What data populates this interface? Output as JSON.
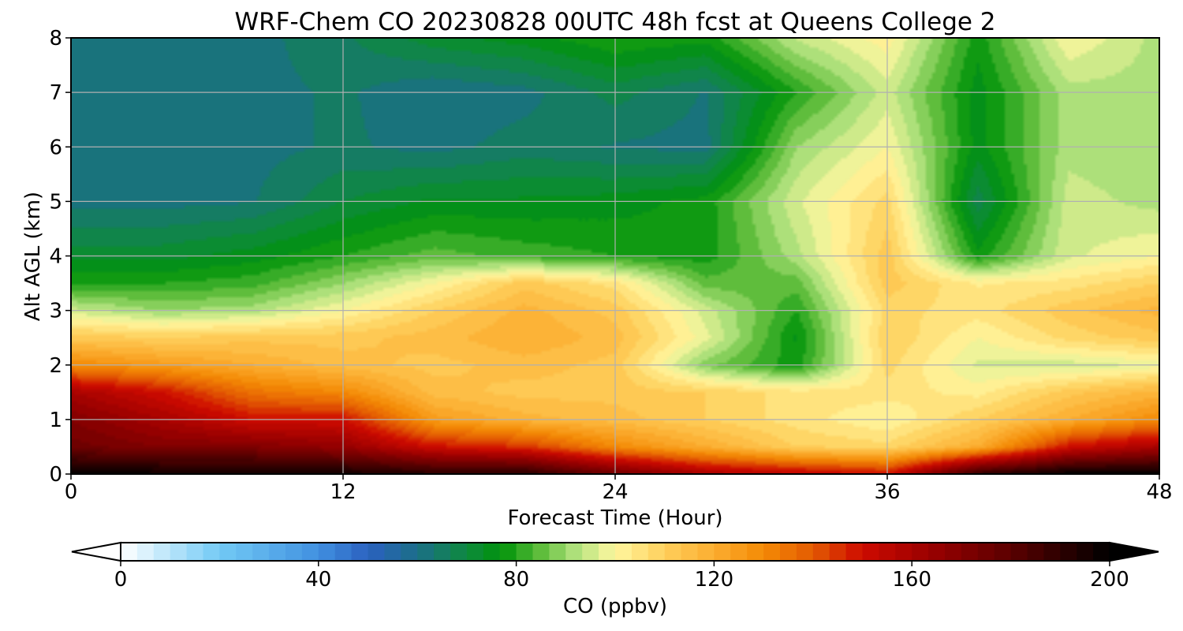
{
  "chart_data": {
    "type": "heatmap",
    "title": "WRF-Chem CO  20230828 00UTC 48h fcst at Queens College 2",
    "xlabel": "Forecast Time (Hour)",
    "ylabel": "Alt AGL (km)",
    "xlim": [
      0,
      48
    ],
    "ylim": [
      0,
      8
    ],
    "xticks": [
      0,
      12,
      24,
      36,
      48
    ],
    "yticks": [
      0,
      1,
      2,
      3,
      4,
      5,
      6,
      7,
      8
    ],
    "grid": true,
    "x": [
      0,
      4,
      8,
      12,
      16,
      20,
      24,
      28,
      32,
      36,
      40,
      44,
      48
    ],
    "y": [
      0,
      0.5,
      1,
      1.5,
      2,
      2.5,
      3,
      3.5,
      4,
      5,
      6,
      7,
      8
    ],
    "z": [
      [
        200,
        198,
        198,
        196,
        192,
        192,
        175,
        160,
        155,
        150,
        190,
        200,
        200
      ],
      [
        175,
        170,
        170,
        165,
        150,
        145,
        130,
        120,
        110,
        108,
        120,
        150,
        160
      ],
      [
        170,
        160,
        150,
        150,
        125,
        118,
        115,
        110,
        105,
        100,
        110,
        120,
        130
      ],
      [
        160,
        150,
        135,
        130,
        115,
        112,
        112,
        110,
        105,
        105,
        102,
        112,
        118
      ],
      [
        130,
        125,
        120,
        115,
        112,
        115,
        112,
        88,
        78,
        108,
        96,
        95,
        98
      ],
      [
        112,
        110,
        112,
        112,
        115,
        120,
        115,
        98,
        76,
        110,
        100,
        108,
        112
      ],
      [
        95,
        90,
        92,
        100,
        110,
        118,
        112,
        95,
        80,
        108,
        105,
        112,
        118
      ],
      [
        80,
        80,
        82,
        90,
        100,
        112,
        105,
        85,
        85,
        112,
        103,
        105,
        110
      ],
      [
        72,
        72,
        75,
        80,
        85,
        82,
        80,
        78,
        92,
        112,
        78,
        96,
        100
      ],
      [
        62,
        62,
        63,
        70,
        74,
        74,
        75,
        78,
        96,
        108,
        68,
        95,
        92
      ],
      [
        62,
        60,
        62,
        64,
        62,
        65,
        63,
        62,
        90,
        100,
        75,
        92,
        90
      ],
      [
        62,
        62,
        62,
        64,
        60,
        62,
        68,
        63,
        80,
        95,
        75,
        92,
        92
      ],
      [
        62,
        62,
        62,
        66,
        72,
        75,
        80,
        78,
        94,
        102,
        78,
        100,
        92
      ]
    ],
    "colorbar": {
      "label": "CO  (ppbv)",
      "range": [
        0,
        200
      ],
      "ticks": [
        0,
        40,
        80,
        120,
        160,
        200
      ],
      "extend": "both",
      "stops": [
        {
          "v": 0,
          "c": "#ffffff"
        },
        {
          "v": 20,
          "c": "#72caf5"
        },
        {
          "v": 40,
          "c": "#4190e0"
        },
        {
          "v": 50,
          "c": "#2b61c0"
        },
        {
          "v": 60,
          "c": "#1b6e88"
        },
        {
          "v": 70,
          "c": "#0e8a3e"
        },
        {
          "v": 77,
          "c": "#00930a"
        },
        {
          "v": 85,
          "c": "#5fbd3c"
        },
        {
          "v": 92,
          "c": "#b1e27d"
        },
        {
          "v": 100,
          "c": "#fff7a0"
        },
        {
          "v": 110,
          "c": "#fecf5b"
        },
        {
          "v": 120,
          "c": "#fbad30"
        },
        {
          "v": 130,
          "c": "#f48a05"
        },
        {
          "v": 140,
          "c": "#e35a02"
        },
        {
          "v": 150,
          "c": "#cd0a00"
        },
        {
          "v": 165,
          "c": "#950000"
        },
        {
          "v": 180,
          "c": "#5a0000"
        },
        {
          "v": 200,
          "c": "#000000"
        }
      ]
    }
  }
}
